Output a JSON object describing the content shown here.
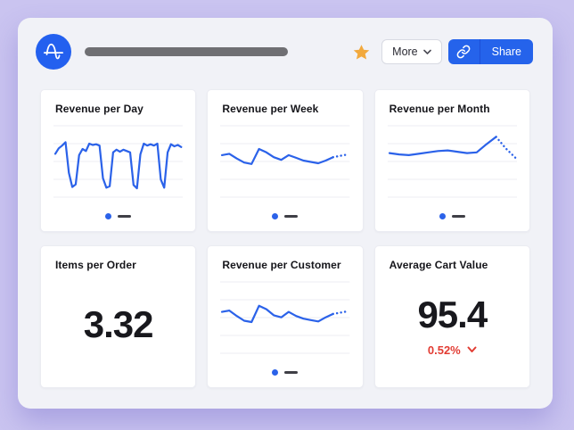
{
  "theme": {
    "page_background": "#cac4f0",
    "panel_background": "#f1f2f7",
    "accent_blue": "#2563eb",
    "line_blue": "#2b62e9",
    "grid_line": "#ececf3",
    "star_gold": "#f2a93d",
    "delta_red": "#e23c33",
    "legend_dash_color": "#3f3f46"
  },
  "header": {
    "logo_icon": "amplitude-logo",
    "favorite_icon": "star-icon",
    "more_label": "More",
    "copy_link_icon": "link-icon",
    "share_label": "Share"
  },
  "cards": [
    {
      "id": "revenue-per-day",
      "title": "Revenue per Day",
      "type": "line",
      "series": {
        "values": [
          64,
          72,
          76,
          81,
          36,
          15,
          19,
          62,
          71,
          68,
          79,
          77,
          78,
          76,
          28,
          14,
          16,
          66,
          70,
          67,
          70,
          68,
          66,
          18,
          13,
          63,
          79,
          76,
          78,
          76,
          79,
          26,
          14,
          66,
          78,
          75,
          77,
          74
        ],
        "projected_from": null
      }
    },
    {
      "id": "revenue-per-week",
      "title": "Revenue per Week",
      "type": "line",
      "series": {
        "values": [
          62,
          64,
          57,
          51,
          49,
          71,
          66,
          59,
          55,
          62,
          58,
          54,
          52,
          50,
          54,
          59,
          61,
          63
        ],
        "projected_from": 15
      }
    },
    {
      "id": "revenue-per-month",
      "title": "Revenue per Month",
      "type": "line",
      "series": {
        "values": [
          65,
          63,
          62,
          64,
          66,
          68,
          69,
          67,
          65,
          66,
          78,
          89,
          72,
          58
        ],
        "projected_from": 11
      }
    },
    {
      "id": "items-per-order",
      "title": "Items per Order",
      "type": "metric",
      "value": "3.32"
    },
    {
      "id": "revenue-per-customer",
      "title": "Revenue per Customer",
      "type": "line",
      "series": {
        "values": [
          61,
          63,
          55,
          48,
          46,
          70,
          65,
          56,
          53,
          61,
          55,
          51,
          49,
          47,
          53,
          58,
          60,
          62
        ],
        "projected_from": 15
      }
    },
    {
      "id": "average-cart-value",
      "title": "Average Cart Value",
      "type": "metric",
      "value": "95.4",
      "delta": {
        "text": "0.52%",
        "direction": "down",
        "color": "#e23c33"
      }
    }
  ]
}
